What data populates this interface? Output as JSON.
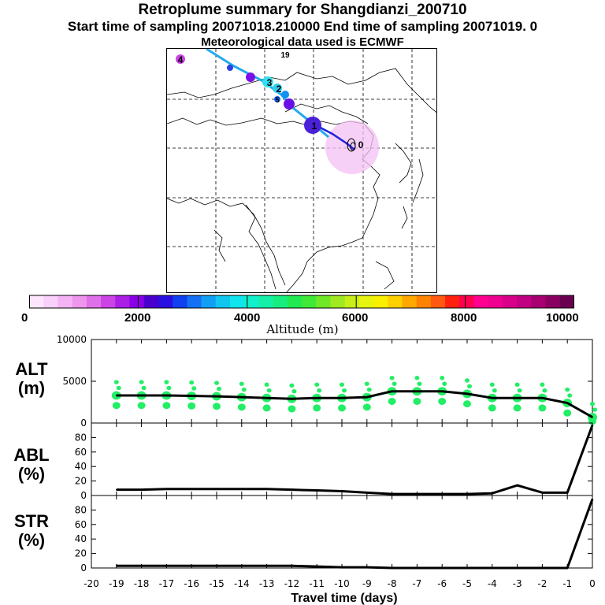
{
  "header": {
    "title": "Retroplume summary for Shangdianzi_200710",
    "subtitle": "Start time of sampling 20071018.210000     End time of sampling 20071019.     0",
    "met_line": "Meteorological data used is ECMWF"
  },
  "colorbar": {
    "label": "Altitude (m)",
    "ticks": [
      "0",
      "2000",
      "4000",
      "6000",
      "8000",
      "10000"
    ],
    "colors": [
      "#fde6fd",
      "#f9d0f9",
      "#f4b4f4",
      "#ee96ee",
      "#e070e8",
      "#cc44e6",
      "#aa1ee6",
      "#8a00e6",
      "#4a00cc",
      "#2a10e0",
      "#1040f0",
      "#1470f5",
      "#109ff5",
      "#10c6f0",
      "#10e4ec",
      "#10f0cc",
      "#14f0a8",
      "#18ee80",
      "#20ea50",
      "#40e838",
      "#70e828",
      "#a0e820",
      "#c8ee18",
      "#e6f410",
      "#f8f000",
      "#ffd000",
      "#ffa800",
      "#ff8200",
      "#ff5a10",
      "#ff2010",
      "#ff0050",
      "#ff0090",
      "#ee0090",
      "#d8008a",
      "#c00080",
      "#a80070",
      "#8a0060",
      "#6a0050"
    ]
  },
  "map": {
    "trajectory_labels": [
      "0",
      "1",
      "2",
      "3",
      "4",
      "5",
      "19"
    ],
    "colors": {
      "path_dark": "#2222dd",
      "path_light": "#22aaee",
      "plume": "#f0b0f0"
    }
  },
  "panels": {
    "alt": {
      "label_top": "ALT",
      "label_bottom": "(m)",
      "yticks": [
        "0",
        "5000",
        "10000"
      ]
    },
    "abl": {
      "label_top": "ABL",
      "label_bottom": "(%)",
      "yticks": [
        "0",
        "20",
        "40",
        "60",
        "80"
      ]
    },
    "str": {
      "label_top": "STR",
      "label_bottom": "(%)",
      "yticks": [
        "0",
        "20",
        "40",
        "60",
        "80"
      ]
    },
    "xaxis_label": "Travel time (days)",
    "xticks": [
      "-20",
      "-19",
      "-18",
      "-17",
      "-16",
      "-15",
      "-14",
      "-13",
      "-12",
      "-11",
      "-10",
      "-9",
      "-8",
      "-7",
      "-6",
      "-5",
      "-4",
      "-3",
      "-2",
      "-1",
      "0"
    ]
  },
  "chart_data": [
    {
      "type": "line",
      "title": "ALT",
      "xlabel": "Travel time (days)",
      "ylabel": "ALT (m)",
      "xlim": [
        -20,
        0
      ],
      "ylim": [
        0,
        10000
      ],
      "series": [
        {
          "name": "mean altitude",
          "x": [
            -19,
            -18,
            -17,
            -16,
            -15,
            -14,
            -13,
            -12,
            -11,
            -10,
            -9,
            -8,
            -7,
            -6,
            -5,
            -4,
            -3,
            -2,
            -1,
            0
          ],
          "values": [
            3300,
            3300,
            3300,
            3250,
            3200,
            3100,
            3000,
            2900,
            3000,
            3000,
            3100,
            3800,
            3800,
            3800,
            3500,
            3000,
            3000,
            3000,
            2400,
            700
          ]
        }
      ],
      "cluster_color": "#22ee66"
    },
    {
      "type": "line",
      "title": "ABL",
      "xlabel": "Travel time (days)",
      "ylabel": "ABL (%)",
      "xlim": [
        -20,
        0
      ],
      "ylim": [
        0,
        100
      ],
      "series": [
        {
          "name": "fraction in boundary layer",
          "x": [
            -19,
            -18,
            -17,
            -16,
            -15,
            -14,
            -13,
            -12,
            -11,
            -10,
            -9,
            -8,
            -7,
            -6,
            -5,
            -4,
            -3,
            -2,
            -1,
            0
          ],
          "values": [
            8,
            8,
            9,
            9,
            9,
            9,
            9,
            8,
            7,
            6,
            4,
            2,
            2,
            2,
            2,
            3,
            14,
            4,
            4,
            97
          ]
        }
      ]
    },
    {
      "type": "line",
      "title": "STR",
      "xlabel": "Travel time (days)",
      "ylabel": "STR (%)",
      "xlim": [
        -20,
        0
      ],
      "ylim": [
        0,
        100
      ],
      "series": [
        {
          "name": "fraction in stratosphere",
          "x": [
            -19,
            -18,
            -17,
            -16,
            -15,
            -14,
            -13,
            -12,
            -11,
            -10,
            -9,
            -8,
            -7,
            -6,
            -5,
            -4,
            -3,
            -2,
            -1,
            0
          ],
          "values": [
            3,
            3,
            3,
            3,
            3,
            3,
            3,
            3,
            2,
            1,
            1,
            0,
            0,
            0,
            0,
            0,
            0,
            0,
            0,
            95
          ]
        }
      ]
    }
  ]
}
